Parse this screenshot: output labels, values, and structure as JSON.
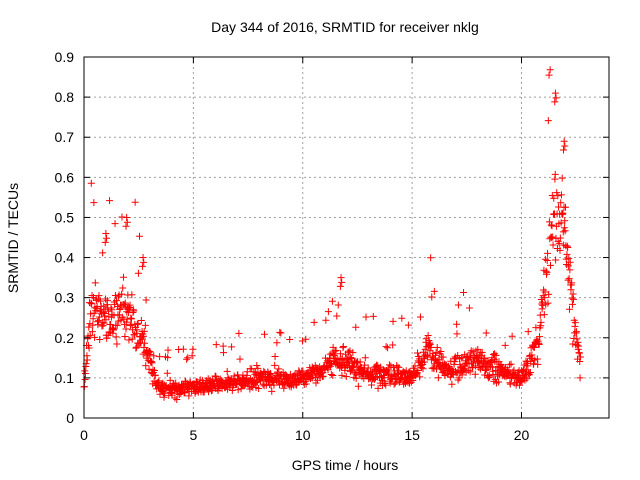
{
  "chart_data": {
    "type": "scatter",
    "title": "Day 344 of 2016, SRMTID for receiver nklg",
    "xlabel": "GPS time / hours",
    "ylabel": "SRMTID / TECUs",
    "xlim": [
      0,
      24
    ],
    "ylim": [
      0,
      0.9
    ],
    "x_ticks": [
      "0",
      "5",
      "10",
      "15",
      "20"
    ],
    "x_tick_values": [
      0,
      5,
      10,
      15,
      20
    ],
    "y_ticks": [
      "0",
      "0.1",
      "0.2",
      "0.3",
      "0.4",
      "0.5",
      "0.6",
      "0.7",
      "0.8",
      "0.9"
    ],
    "y_tick_values": [
      0,
      0.1,
      0.2,
      0.3,
      0.4,
      0.5,
      0.6,
      0.7,
      0.8,
      0.9
    ],
    "grid": true,
    "marker": "+",
    "series": [
      {
        "name": "SRMTID",
        "color": "#ff0000",
        "x_range": [
          0,
          22.7
        ],
        "sample_interval_hours": 0.0167,
        "envelope": [
          {
            "x": 0.0,
            "y": 0.09
          },
          {
            "x": 0.3,
            "y": 0.24
          },
          {
            "x": 0.6,
            "y": 0.28
          },
          {
            "x": 1.0,
            "y": 0.26
          },
          {
            "x": 1.5,
            "y": 0.24
          },
          {
            "x": 2.0,
            "y": 0.28
          },
          {
            "x": 2.5,
            "y": 0.2
          },
          {
            "x": 3.0,
            "y": 0.16
          },
          {
            "x": 3.3,
            "y": 0.08
          },
          {
            "x": 4.0,
            "y": 0.07
          },
          {
            "x": 5.0,
            "y": 0.08
          },
          {
            "x": 6.0,
            "y": 0.08
          },
          {
            "x": 7.0,
            "y": 0.09
          },
          {
            "x": 8.0,
            "y": 0.1
          },
          {
            "x": 9.0,
            "y": 0.1
          },
          {
            "x": 10.0,
            "y": 0.1
          },
          {
            "x": 11.0,
            "y": 0.12
          },
          {
            "x": 11.5,
            "y": 0.15
          },
          {
            "x": 12.0,
            "y": 0.14
          },
          {
            "x": 13.0,
            "y": 0.11
          },
          {
            "x": 14.0,
            "y": 0.11
          },
          {
            "x": 15.0,
            "y": 0.1
          },
          {
            "x": 15.8,
            "y": 0.17
          },
          {
            "x": 16.5,
            "y": 0.12
          },
          {
            "x": 17.0,
            "y": 0.13
          },
          {
            "x": 18.0,
            "y": 0.14
          },
          {
            "x": 19.0,
            "y": 0.12
          },
          {
            "x": 19.8,
            "y": 0.1
          },
          {
            "x": 20.3,
            "y": 0.12
          },
          {
            "x": 20.8,
            "y": 0.2
          },
          {
            "x": 21.1,
            "y": 0.36
          },
          {
            "x": 21.5,
            "y": 0.52
          },
          {
            "x": 21.9,
            "y": 0.5
          },
          {
            "x": 22.2,
            "y": 0.36
          },
          {
            "x": 22.5,
            "y": 0.2
          },
          {
            "x": 22.7,
            "y": 0.13
          }
        ],
        "peaks": [
          {
            "x": 1.95,
            "y": 0.5
          },
          {
            "x": 1.0,
            "y": 0.46
          },
          {
            "x": 2.7,
            "y": 0.4
          },
          {
            "x": 11.75,
            "y": 0.35
          },
          {
            "x": 21.55,
            "y": 0.81
          },
          {
            "x": 21.95,
            "y": 0.69
          }
        ]
      }
    ]
  }
}
